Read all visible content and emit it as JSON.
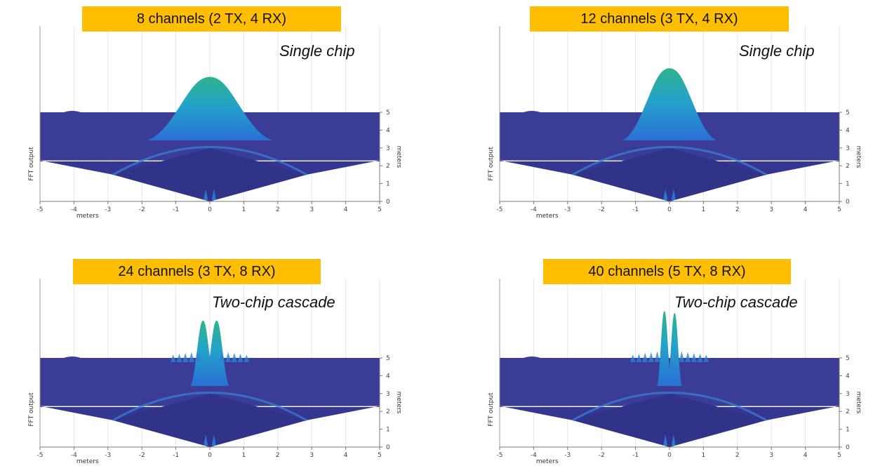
{
  "colors": {
    "banner": "#ffbf00",
    "surface_low": "#34348f",
    "surface_high": "#2fb38c"
  },
  "chart_data": [
    {
      "type": "surface",
      "banner": "8 channels (2 TX, 4 RX)",
      "subtitle": "Single chip",
      "xlabel": "meters",
      "zlabel": "FFT output",
      "ylabel": "meters",
      "x_ticks": [
        "-5",
        "-4",
        "-3",
        "-2",
        "-1",
        "0",
        "1",
        "2",
        "3",
        "4",
        "5"
      ],
      "y_ticks": [
        "0",
        "1",
        "2",
        "3",
        "4",
        "5"
      ],
      "xlim": [
        -5,
        5
      ],
      "ylim": [
        0,
        5
      ],
      "peaks": [
        {
          "x": 0,
          "height": 1.0,
          "width": 0.6
        }
      ]
    },
    {
      "type": "surface",
      "banner": "12 channels (3 TX, 4 RX)",
      "subtitle": "Single chip",
      "xlabel": "meters",
      "zlabel": "FFT output",
      "ylabel": "meters",
      "x_ticks": [
        "-5",
        "-4",
        "-3",
        "-2",
        "-1",
        "0",
        "1",
        "2",
        "3",
        "4",
        "5"
      ],
      "y_ticks": [
        "0",
        "1",
        "2",
        "3",
        "4",
        "5"
      ],
      "xlim": [
        -5,
        5
      ],
      "ylim": [
        0,
        5
      ],
      "peaks": [
        {
          "x": 0,
          "height": 1.25,
          "width": 0.45
        }
      ]
    },
    {
      "type": "surface",
      "banner": "24 channels (3 TX, 8 RX)",
      "subtitle": "Two-chip cascade",
      "xlabel": "meters",
      "zlabel": "FFT output",
      "ylabel": "meters",
      "x_ticks": [
        "-5",
        "-4",
        "-3",
        "-2",
        "-1",
        "0",
        "1",
        "2",
        "3",
        "4",
        "5"
      ],
      "y_ticks": [
        "0",
        "1",
        "2",
        "3",
        "4",
        "5"
      ],
      "xlim": [
        -5,
        5
      ],
      "ylim": [
        0,
        5
      ],
      "peaks": [
        {
          "x": -0.2,
          "height": 0.95,
          "width": 0.12
        },
        {
          "x": 0.2,
          "height": 0.95,
          "width": 0.12
        }
      ]
    },
    {
      "type": "surface",
      "banner": "40 channels (5 TX, 8 RX)",
      "subtitle": "Two-chip cascade",
      "xlabel": "meters",
      "zlabel": "FFT output",
      "ylabel": "meters",
      "x_ticks": [
        "-5",
        "-4",
        "-3",
        "-2",
        "-1",
        "0",
        "1",
        "2",
        "3",
        "4",
        "5"
      ],
      "y_ticks": [
        "0",
        "1",
        "2",
        "3",
        "4",
        "5"
      ],
      "xlim": [
        -5,
        5
      ],
      "ylim": [
        0,
        5
      ],
      "peaks": [
        {
          "x": -0.15,
          "height": 1.2,
          "width": 0.07
        },
        {
          "x": 0.15,
          "height": 1.15,
          "width": 0.07
        }
      ]
    }
  ]
}
